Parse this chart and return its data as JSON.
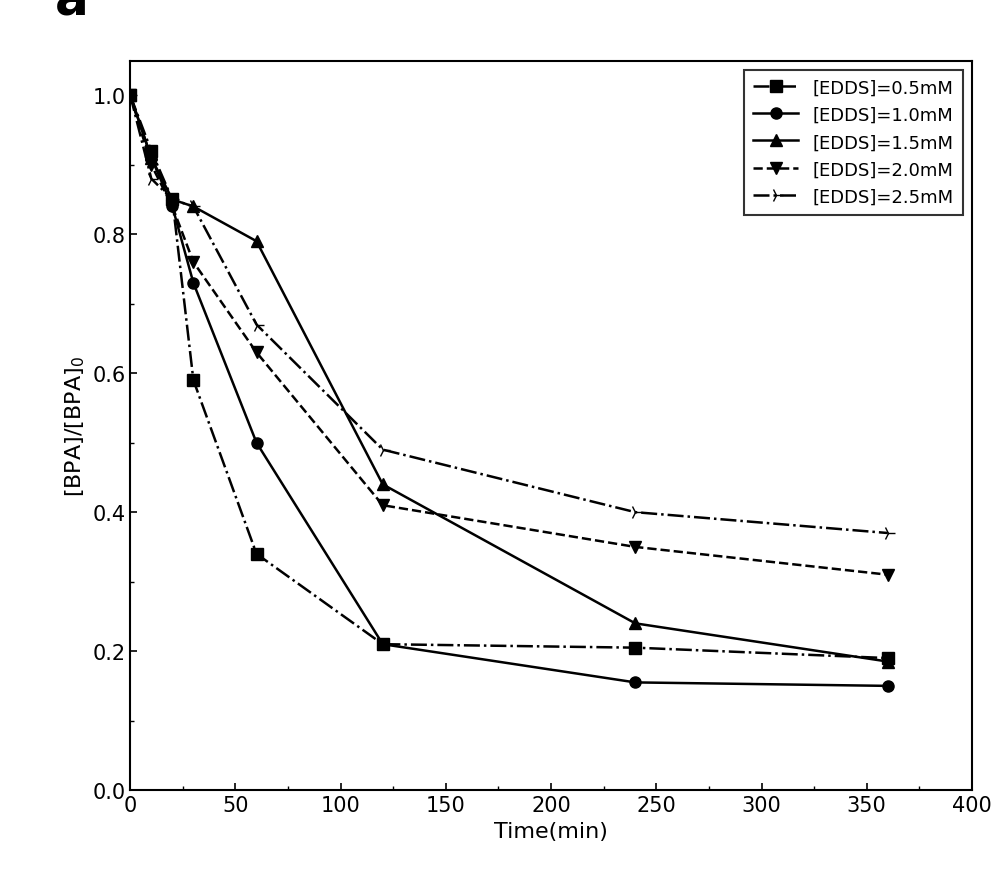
{
  "title_label": "a",
  "xlabel": "Time(min)",
  "ylabel": "[BPA]/[BPA]",
  "ylabel_subscript": "0",
  "xlim": [
    0,
    400
  ],
  "ylim": [
    0.0,
    1.05
  ],
  "xticks": [
    0,
    50,
    100,
    150,
    200,
    250,
    300,
    350,
    400
  ],
  "yticks": [
    0.0,
    0.2,
    0.4,
    0.6,
    0.8,
    1.0
  ],
  "series": [
    {
      "label": "[EDDS]=0.5mM",
      "x": [
        0,
        10,
        20,
        30,
        60,
        120,
        240,
        360
      ],
      "y": [
        1.0,
        0.92,
        0.85,
        0.59,
        0.34,
        0.21,
        0.205,
        0.19
      ],
      "marker": "s",
      "linestyle": "-.",
      "color": "#000000",
      "markersize": 8,
      "linewidth": 1.8,
      "legend_box": true
    },
    {
      "label": "[EDDS]=1.0mM",
      "x": [
        0,
        10,
        20,
        30,
        60,
        120,
        240,
        360
      ],
      "y": [
        1.0,
        0.91,
        0.84,
        0.73,
        0.5,
        0.21,
        0.155,
        0.15
      ],
      "marker": "o",
      "linestyle": "-",
      "color": "#000000",
      "markersize": 8,
      "linewidth": 1.8,
      "legend_box": false
    },
    {
      "label": "[EDDS]=1.5mM",
      "x": [
        0,
        10,
        20,
        30,
        60,
        120,
        240,
        360
      ],
      "y": [
        1.0,
        0.91,
        0.85,
        0.84,
        0.79,
        0.44,
        0.24,
        0.185
      ],
      "marker": "^",
      "linestyle": "-",
      "color": "#000000",
      "markersize": 8,
      "linewidth": 1.8,
      "legend_box": false
    },
    {
      "label": "[EDDS]=2.0mM",
      "x": [
        0,
        10,
        20,
        30,
        60,
        120,
        240,
        360
      ],
      "y": [
        1.0,
        0.9,
        0.84,
        0.76,
        0.63,
        0.41,
        0.35,
        0.31
      ],
      "marker": "v",
      "linestyle": "--",
      "color": "#000000",
      "markersize": 8,
      "linewidth": 1.8,
      "legend_box": false
    },
    {
      "label": "[EDDS]=2.5mM",
      "x": [
        0,
        10,
        20,
        30,
        60,
        120,
        240,
        360
      ],
      "y": [
        1.0,
        0.88,
        0.85,
        0.84,
        0.67,
        0.49,
        0.4,
        0.37
      ],
      "marker": "4",
      "linestyle": "-.",
      "color": "#000000",
      "markersize": 10,
      "linewidth": 1.8,
      "legend_box": false
    }
  ],
  "background_color": "#ffffff",
  "font_size_ticks": 15,
  "font_size_labels": 16,
  "font_size_legend": 13,
  "font_size_annotation": 36
}
